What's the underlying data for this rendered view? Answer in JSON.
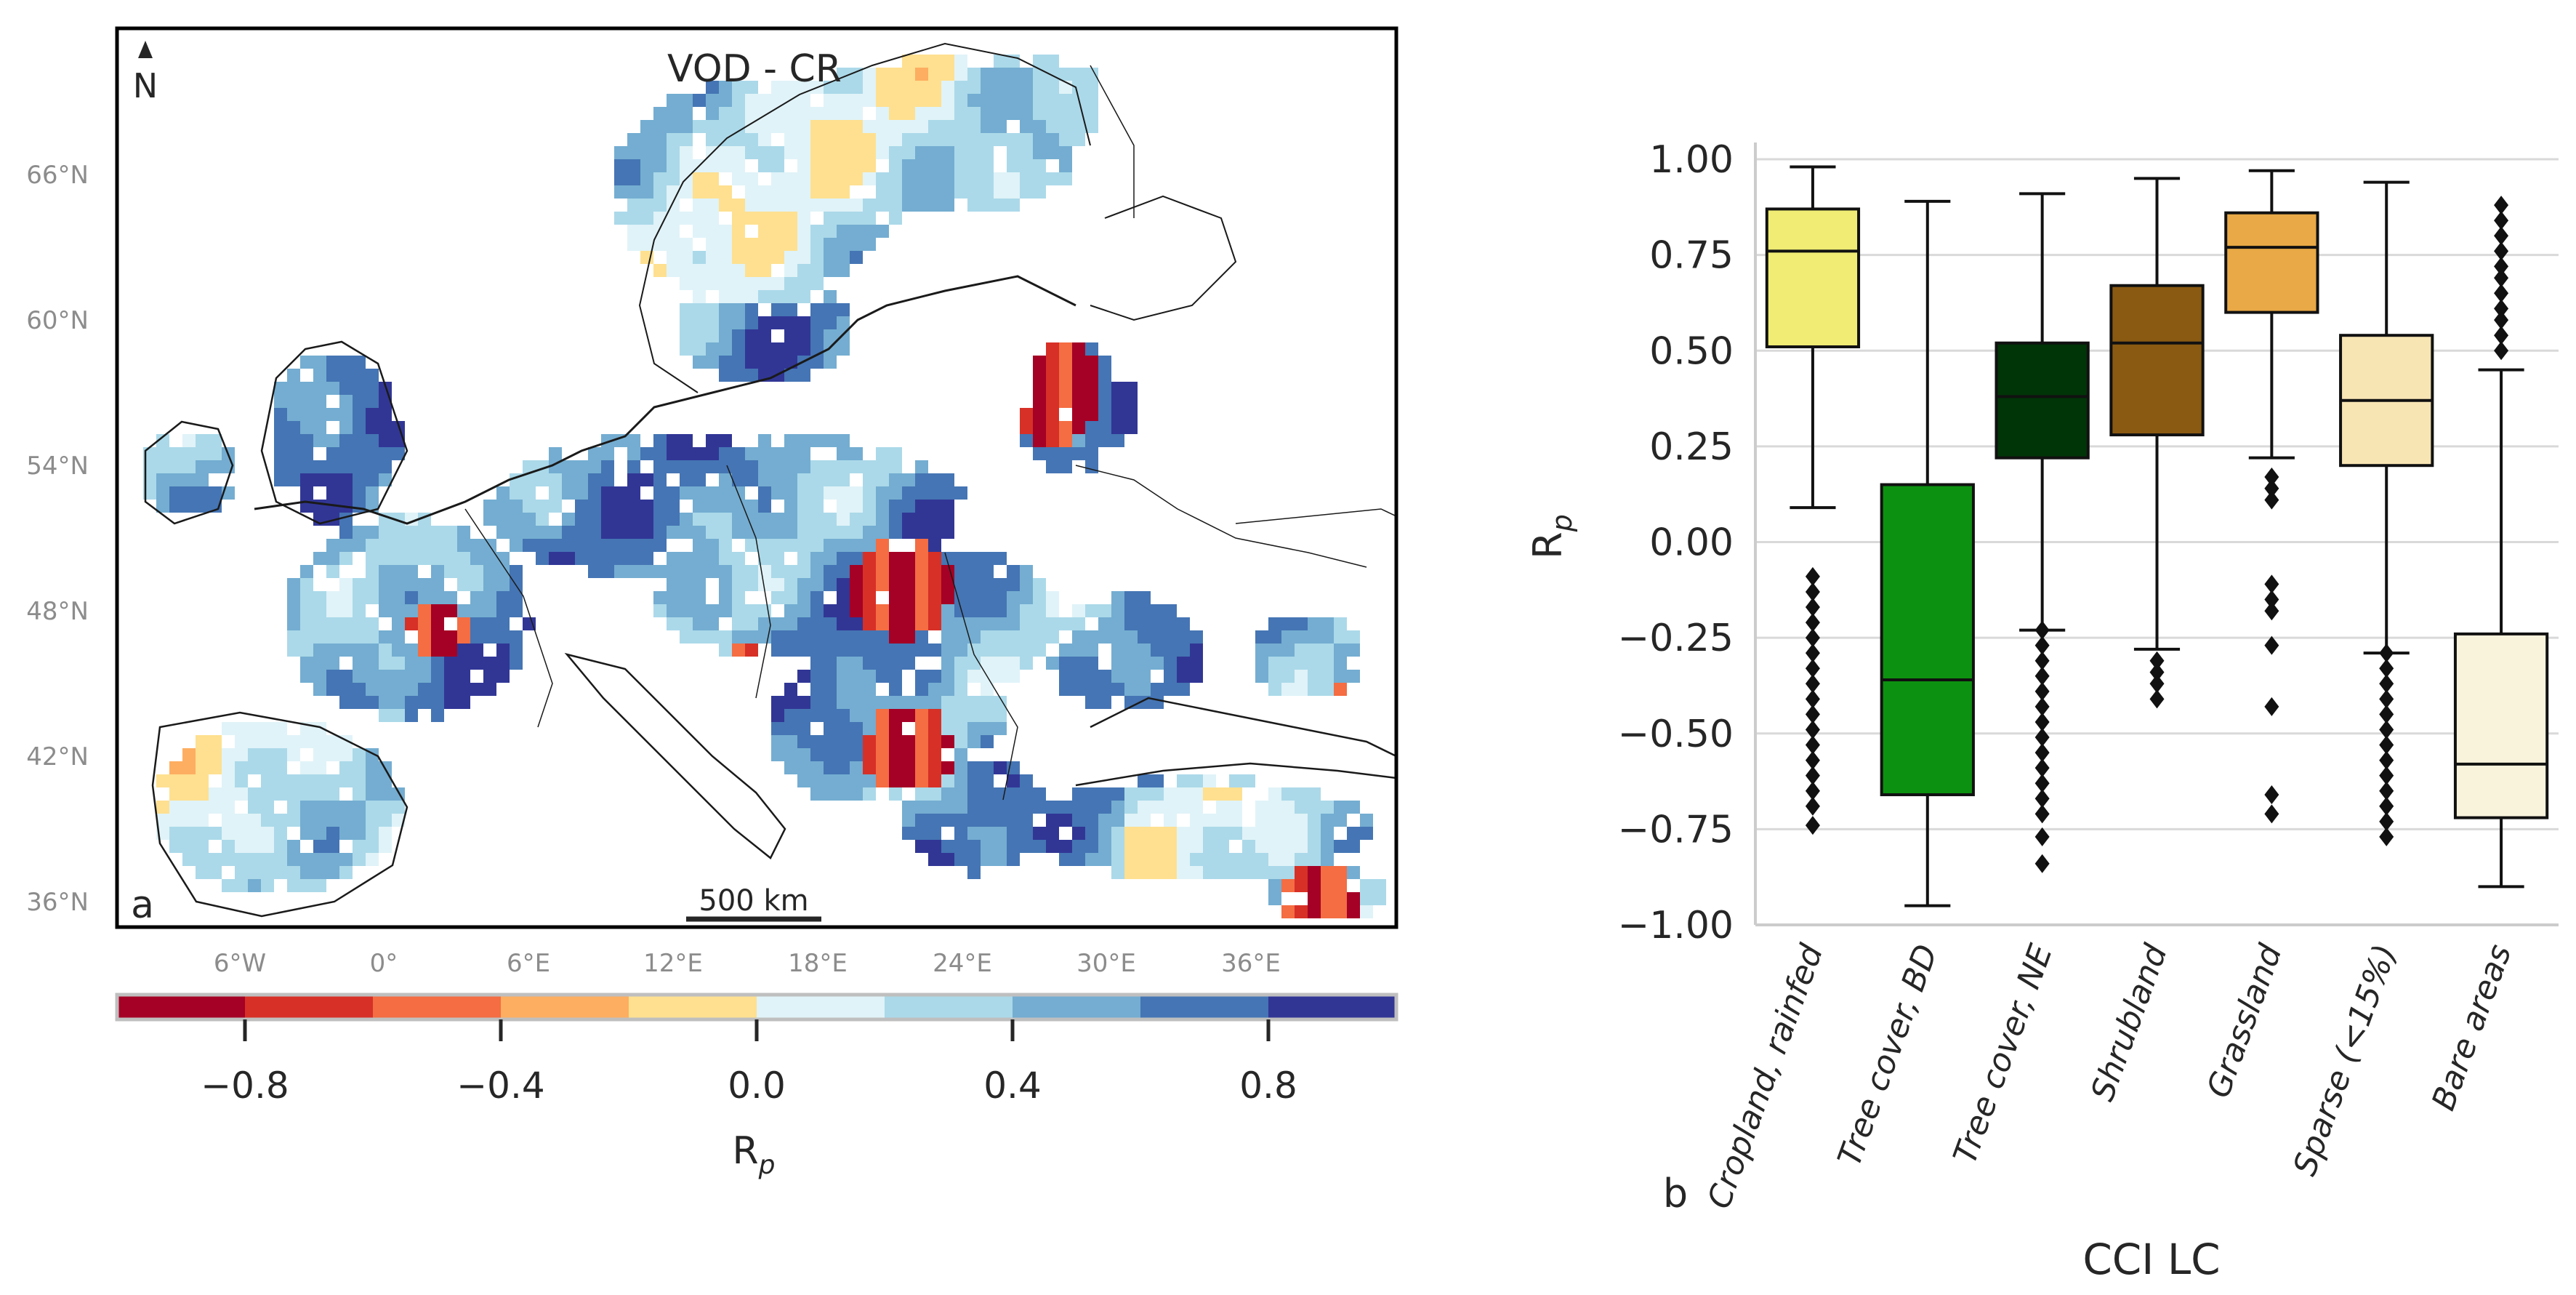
{
  "chart_data": [
    {
      "type": "heatmap",
      "panel_label": "a",
      "title": "VOD - CR",
      "north_label": "N",
      "scale_bar_label": "500 km",
      "lat_tick_labels": [
        "66°N",
        "60°N",
        "54°N",
        "48°N",
        "42°N",
        "36°N"
      ],
      "lon_tick_labels": [
        "6°W",
        "0°",
        "6°E",
        "12°E",
        "18°E",
        "24°E",
        "30°E",
        "36°E"
      ],
      "colorbar": {
        "label": "R_p",
        "label_main": "R",
        "label_sub": "p",
        "range": [
          -1.0,
          1.0
        ],
        "tick_values": [
          -0.8,
          -0.4,
          0.0,
          0.4,
          0.8
        ],
        "tick_labels": [
          "−0.8",
          "−0.4",
          "0.0",
          "0.4",
          "0.8"
        ],
        "colors": [
          "#a50026",
          "#d73027",
          "#f46d43",
          "#fdae61",
          "#fee090",
          "#e0f3f8",
          "#abd9e9",
          "#74add1",
          "#4575b4",
          "#313695"
        ]
      }
    },
    {
      "type": "box",
      "panel_label": "b",
      "xlabel": "CCI LC",
      "ylabel": "R_p",
      "ylabel_main": "R",
      "ylabel_sub": "p",
      "ylim": [
        -1.0,
        1.0
      ],
      "y_ticks": [
        1.0,
        0.75,
        0.5,
        0.25,
        0.0,
        -0.25,
        -0.5,
        -0.75,
        -1.0
      ],
      "y_tick_labels": [
        "1.00",
        "0.75",
        "0.50",
        "0.25",
        "0.00",
        "−0.25",
        "−0.50",
        "−0.75",
        "−1.00"
      ],
      "grid": true,
      "categories": [
        "Cropland, rainfed",
        "Tree cover, BD",
        "Tree cover, NE",
        "Shrubland",
        "Grassland",
        "Sparse (<15%)",
        "Bare areas"
      ],
      "boxes": [
        {
          "name": "Cropland, rainfed",
          "color": "#f0ec74",
          "whisker_low": 0.09,
          "q1": 0.51,
          "median": 0.76,
          "q3": 0.87,
          "whisker_high": 0.98,
          "outliers": [
            -0.09,
            -0.13,
            -0.17,
            -0.21,
            -0.25,
            -0.29,
            -0.33,
            -0.37,
            -0.41,
            -0.45,
            -0.49,
            -0.53,
            -0.57,
            -0.61,
            -0.65,
            -0.69,
            -0.74
          ]
        },
        {
          "name": "Tree cover, BD",
          "color": "#0d9110",
          "whisker_low": -0.95,
          "q1": -0.66,
          "median": -0.36,
          "q3": 0.15,
          "whisker_high": 0.89,
          "outliers": []
        },
        {
          "name": "Tree cover, NE",
          "color": "#003507",
          "whisker_low": -0.23,
          "q1": 0.22,
          "median": 0.38,
          "q3": 0.52,
          "whisker_high": 0.91,
          "outliers": [
            -0.23,
            -0.27,
            -0.31,
            -0.35,
            -0.39,
            -0.43,
            -0.47,
            -0.51,
            -0.55,
            -0.59,
            -0.63,
            -0.67,
            -0.71,
            -0.77,
            -0.84
          ]
        },
        {
          "name": "Shrubland",
          "color": "#8a5a12",
          "whisker_low": -0.28,
          "q1": 0.28,
          "median": 0.52,
          "q3": 0.67,
          "whisker_high": 0.95,
          "outliers": [
            -0.31,
            -0.34,
            -0.37,
            -0.41
          ]
        },
        {
          "name": "Grassland",
          "color": "#e8a946",
          "whisker_low": 0.22,
          "q1": 0.6,
          "median": 0.77,
          "q3": 0.86,
          "whisker_high": 0.97,
          "outliers": [
            0.17,
            0.14,
            0.11,
            -0.11,
            -0.15,
            -0.18,
            -0.27,
            -0.43,
            -0.66,
            -0.71
          ]
        },
        {
          "name": "Sparse (<15%)",
          "color": "#f8e5b4",
          "whisker_low": -0.29,
          "q1": 0.2,
          "median": 0.37,
          "q3": 0.54,
          "whisker_high": 0.94,
          "outliers": [
            -0.29,
            -0.33,
            -0.37,
            -0.41,
            -0.45,
            -0.49,
            -0.53,
            -0.57,
            -0.61,
            -0.65,
            -0.69,
            -0.73,
            -0.77
          ]
        },
        {
          "name": "Bare areas",
          "color": "#faf3dc",
          "whisker_low": -0.9,
          "q1": -0.72,
          "median": -0.58,
          "q3": -0.24,
          "whisker_high": 0.45,
          "outliers": [
            0.5,
            0.54,
            0.58,
            0.61,
            0.65,
            0.69,
            0.72,
            0.76,
            0.8,
            0.84,
            0.88
          ]
        }
      ]
    }
  ]
}
